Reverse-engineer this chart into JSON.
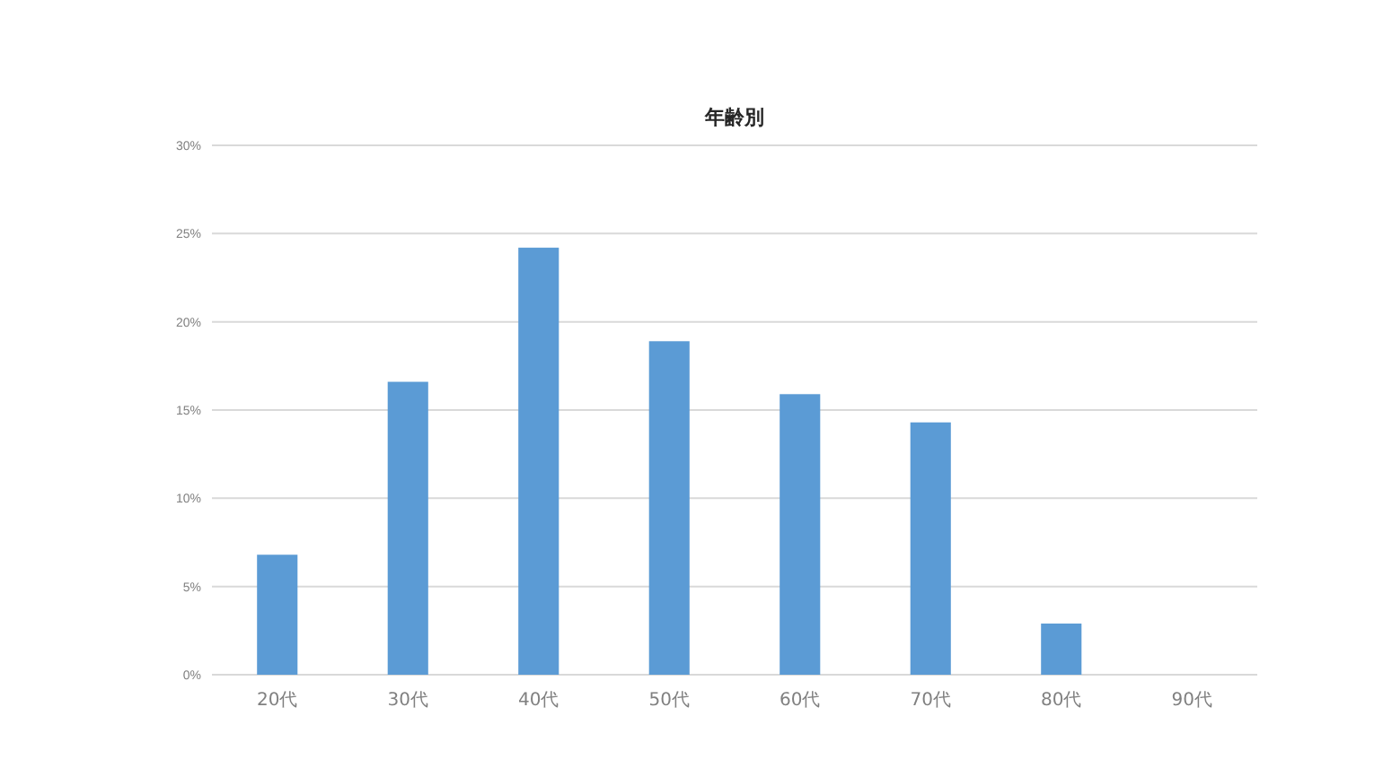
{
  "chart_data": {
    "type": "bar",
    "title": "年齢別",
    "categories": [
      "20代",
      "30代",
      "40代",
      "50代",
      "60代",
      "70代",
      "80代",
      "90代"
    ],
    "values": [
      6.8,
      16.6,
      24.2,
      18.9,
      15.9,
      14.3,
      2.9,
      0
    ],
    "color": "#5b9bd5",
    "ylim": [
      0,
      30
    ],
    "yticks": [
      {
        "value": 0,
        "label": "0%"
      },
      {
        "value": 5,
        "label": "5%"
      },
      {
        "value": 10,
        "label": "10%"
      },
      {
        "value": 15,
        "label": "15%"
      },
      {
        "value": 20,
        "label": "20%"
      },
      {
        "value": 25,
        "label": "25%"
      },
      {
        "value": 30,
        "label": "30%"
      }
    ],
    "grid": "y"
  }
}
